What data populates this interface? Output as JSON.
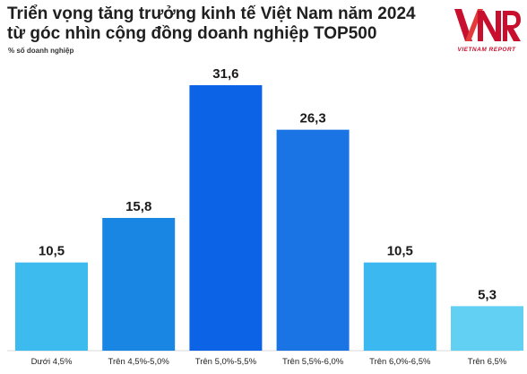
{
  "header": {
    "title_line1": "Triển vọng tăng trưởng kinh tế Việt Nam năm 2024",
    "title_line2": "từ góc nhìn cộng đồng doanh nghiệp TOP500",
    "unit_note": "% số doanh nghiệp"
  },
  "logo": {
    "mark": "VNR",
    "subtitle": "VIETNAM REPORT",
    "color": "#c8102e"
  },
  "chart_data": {
    "type": "bar",
    "title": "Triển vọng tăng trưởng kinh tế Việt Nam năm 2024 từ góc nhìn cộng đồng doanh nghiệp TOP500",
    "ylabel": "% số doanh nghiệp",
    "categories": [
      "Dưới 4,5%",
      "Trên 4,5%-5,0%",
      "Trên 5,0%-5,5%",
      "Trên 5,5%-6,0%",
      "Trên 6,0%-6,5%",
      "Trên 6,5%"
    ],
    "values": [
      10.5,
      15.8,
      31.6,
      26.3,
      10.5,
      5.3
    ],
    "value_labels": [
      "10,5",
      "15,8",
      "31,6",
      "26,3",
      "10,5",
      "5,3"
    ],
    "colors": [
      "#3dbbef",
      "#1a86e3",
      "#0c63e6",
      "#1a74e4",
      "#3bb8f0",
      "#62d0f3"
    ],
    "ylim": [
      0,
      31.6
    ],
    "grid": false,
    "legend": "none"
  }
}
